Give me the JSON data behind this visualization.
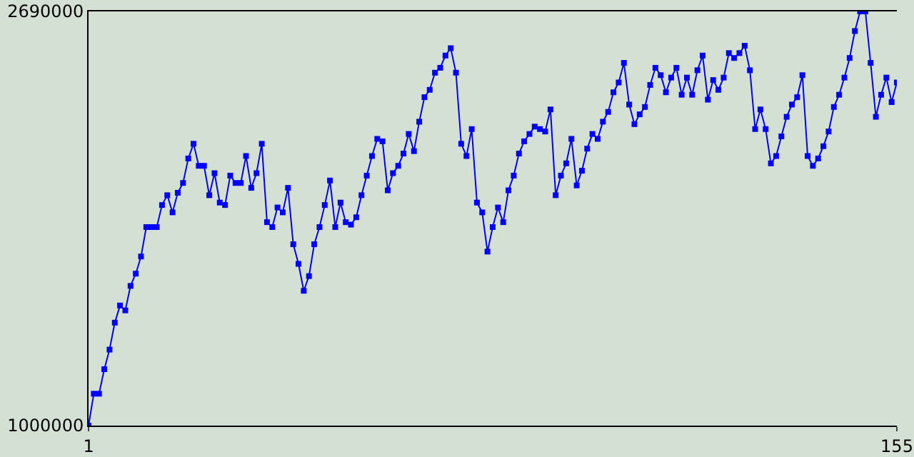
{
  "chart_data": {
    "type": "line",
    "marker": "square",
    "line_style": "solid",
    "xlim": [
      1,
      155
    ],
    "xticks": [
      1,
      155
    ],
    "ylim": [
      1000000,
      2690000
    ],
    "yticks": [
      1000000,
      2690000
    ],
    "x": [
      1,
      2,
      3,
      4,
      5,
      6,
      7,
      8,
      9,
      10,
      11,
      12,
      13,
      14,
      15,
      16,
      17,
      18,
      19,
      20,
      21,
      22,
      23,
      24,
      25,
      26,
      27,
      28,
      29,
      30,
      31,
      32,
      33,
      34,
      35,
      36,
      37,
      38,
      39,
      40,
      41,
      42,
      43,
      44,
      45,
      46,
      47,
      48,
      49,
      50,
      51,
      52,
      53,
      54,
      55,
      56,
      57,
      58,
      59,
      60,
      61,
      62,
      63,
      64,
      65,
      66,
      67,
      68,
      69,
      70,
      71,
      72,
      73,
      74,
      75,
      76,
      77,
      78,
      79,
      80,
      81,
      82,
      83,
      84,
      85,
      86,
      87,
      88,
      89,
      90,
      91,
      92,
      93,
      94,
      95,
      96,
      97,
      98,
      99,
      100,
      101,
      102,
      103,
      104,
      105,
      106,
      107,
      108,
      109,
      110,
      111,
      112,
      113,
      114,
      115,
      116,
      117,
      118,
      119,
      120,
      121,
      122,
      123,
      124,
      125,
      126,
      127,
      128,
      129,
      130,
      131,
      132,
      133,
      134,
      135,
      136,
      137,
      138,
      139,
      140,
      141,
      142,
      143,
      144,
      145,
      146,
      147,
      148,
      149,
      150,
      151,
      152,
      153,
      154,
      155
    ],
    "series": [
      {
        "color": "#0000ff",
        "values": [
          1000000,
          1130000,
          1130000,
          1230000,
          1310000,
          1420000,
          1490000,
          1470000,
          1570000,
          1620000,
          1690000,
          1810000,
          1810000,
          1810000,
          1900000,
          1940000,
          1870000,
          1950000,
          1990000,
          2090000,
          2150000,
          2060000,
          2060000,
          1940000,
          2030000,
          1910000,
          1900000,
          2020000,
          1990000,
          1990000,
          2100000,
          1970000,
          2030000,
          2150000,
          1830000,
          1810000,
          1890000,
          1870000,
          1970000,
          1740000,
          1660000,
          1550000,
          1610000,
          1740000,
          1810000,
          1900000,
          2000000,
          1810000,
          1910000,
          1830000,
          1820000,
          1850000,
          1940000,
          2020000,
          2100000,
          2170000,
          2160000,
          1960000,
          2030000,
          2060000,
          2110000,
          2190000,
          2120000,
          2240000,
          2340000,
          2370000,
          2440000,
          2460000,
          2510000,
          2540000,
          2440000,
          2150000,
          2100000,
          2210000,
          1910000,
          1870000,
          1710000,
          1810000,
          1890000,
          1830000,
          1960000,
          2020000,
          2110000,
          2160000,
          2190000,
          2220000,
          2210000,
          2200000,
          2290000,
          1940000,
          2020000,
          2070000,
          2170000,
          1980000,
          2040000,
          2130000,
          2190000,
          2170000,
          2240000,
          2280000,
          2360000,
          2400000,
          2480000,
          2310000,
          2230000,
          2270000,
          2300000,
          2390000,
          2460000,
          2430000,
          2360000,
          2420000,
          2460000,
          2350000,
          2420000,
          2350000,
          2450000,
          2510000,
          2330000,
          2410000,
          2370000,
          2420000,
          2520000,
          2500000,
          2520000,
          2550000,
          2450000,
          2210000,
          2290000,
          2210000,
          2070000,
          2100000,
          2180000,
          2260000,
          2310000,
          2340000,
          2430000,
          2100000,
          2060000,
          2090000,
          2140000,
          2200000,
          2300000,
          2350000,
          2420000,
          2500000,
          2610000,
          2690000,
          2690000,
          2480000,
          2260000,
          2350000,
          2420000,
          2320000,
          2400000
        ]
      }
    ]
  }
}
